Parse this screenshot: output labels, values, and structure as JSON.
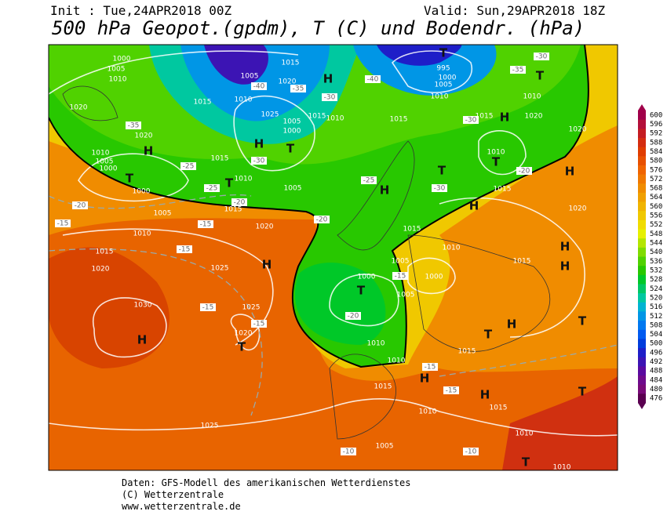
{
  "header": {
    "init": "Init : Tue,24APR2018 00Z",
    "valid": "Valid: Sun,29APR2018 18Z",
    "title": "500 hPa Geopot.(gpdm), T (C) und Bodendr. (hPa)"
  },
  "colorbar": {
    "labels": [
      "600",
      "596",
      "592",
      "588",
      "584",
      "580",
      "576",
      "572",
      "568",
      "564",
      "560",
      "556",
      "552",
      "548",
      "544",
      "540",
      "536",
      "532",
      "528",
      "524",
      "520",
      "516",
      "512",
      "508",
      "504",
      "500",
      "496",
      "492",
      "488",
      "484",
      "480",
      "476"
    ],
    "colors": [
      "#a0004a",
      "#b3103a",
      "#c41c22",
      "#d42c10",
      "#e03c00",
      "#e85000",
      "#f06400",
      "#f07800",
      "#f08c00",
      "#f0a000",
      "#f0b400",
      "#f0c800",
      "#f0dc00",
      "#e6f000",
      "#b4e600",
      "#80dc00",
      "#50d200",
      "#28c800",
      "#00c828",
      "#00c864",
      "#00c8a0",
      "#00b4d2",
      "#0096e6",
      "#0078f0",
      "#005af0",
      "#003cdc",
      "#1e1ec8",
      "#3c14b4",
      "#5a0aa0",
      "#6e0a8c",
      "#780a78",
      "#5a0050"
    ]
  },
  "map": {
    "centers": [
      "H",
      "T",
      "T",
      "H",
      "H",
      "T",
      "H",
      "H",
      "T",
      "T",
      "H",
      "T",
      "H",
      "H",
      "T",
      "H",
      "H",
      "H",
      "T",
      "H",
      "T",
      "T",
      "T",
      "H",
      "H",
      "T",
      "T"
    ],
    "isobars": [
      "1000",
      "1005",
      "1010",
      "1015",
      "1005",
      "1020",
      "1010",
      "1015",
      "995",
      "1000",
      "1005",
      "1010",
      "1010",
      "1020",
      "1025",
      "1005",
      "1000",
      "1015",
      "1010",
      "1015",
      "1015",
      "1020",
      "1020",
      "1020",
      "1010",
      "1005",
      "1000",
      "1000",
      "1015",
      "1010",
      "1005",
      "1010",
      "1015",
      "1005",
      "1015",
      "1020",
      "1010",
      "1015",
      "1020",
      "1025",
      "1020",
      "1015",
      "1005",
      "1010",
      "1000",
      "1000",
      "1015",
      "1030",
      "1025",
      "1005",
      "1020",
      "1010",
      "1010",
      "1015",
      "1015",
      "1015",
      "1010",
      "1025",
      "1010",
      "1005",
      "1010"
    ],
    "temps": [
      "-40",
      "-40",
      "-30",
      "-35",
      "-35",
      "-30",
      "-30",
      "-35",
      "-25",
      "-30",
      "-20",
      "-25",
      "-20",
      "-15",
      "-15",
      "-20",
      "-20",
      "-25",
      "-30",
      "-20",
      "-15",
      "-15",
      "-15",
      "-15",
      "-15",
      "-15",
      "-10",
      "-10"
    ]
  },
  "footer": [
    "Daten: GFS-Modell des amerikanischen Wetterdienstes",
    "(C) Wetterzentrale",
    "www.wetterzentrale.de"
  ]
}
